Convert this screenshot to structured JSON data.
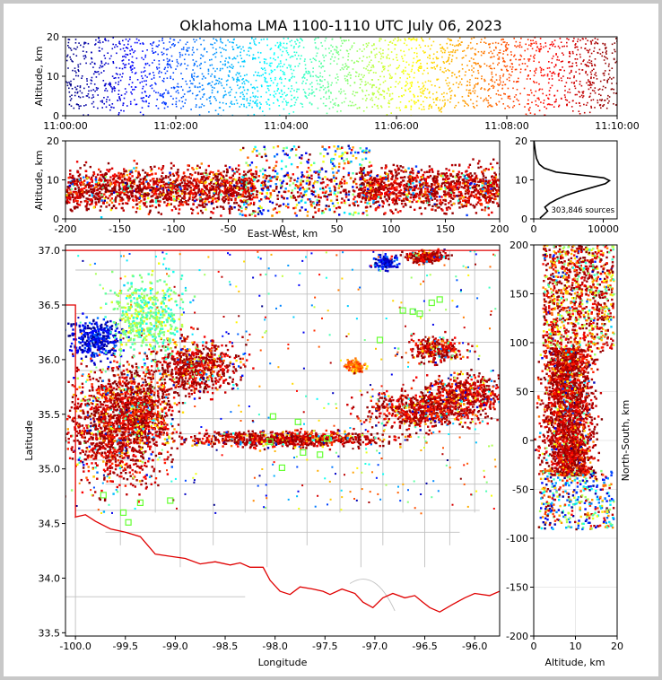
{
  "title": "Oklahoma LMA 1100-1110 UTC July 06, 2023",
  "colors": {
    "state_border": "#e00000",
    "county_lines": "#c0c0c0",
    "profile_line": "#000000"
  },
  "chart_data": [
    {
      "id": "time-height",
      "type": "scatter",
      "xlabel": "",
      "ylabel": "Altitude, km",
      "x_ticks": [
        "11:00:00",
        "11:02:00",
        "11:04:00",
        "11:06:00",
        "11:08:00",
        "11:10:00"
      ],
      "y_ticks": [
        0,
        10,
        20
      ],
      "xlim": [
        "11:00:00",
        "11:10:00"
      ],
      "ylim": [
        0,
        20
      ],
      "colormap": "jet (by time)"
    },
    {
      "id": "east-west-altitude",
      "type": "scatter",
      "xlabel": "East-West, km",
      "ylabel": "Altitude, km",
      "x_ticks": [
        -200,
        -150,
        -100,
        -50,
        0,
        50,
        100,
        150,
        200
      ],
      "y_ticks": [
        0,
        10,
        20
      ],
      "xlim": [
        -200,
        200
      ],
      "ylim": [
        0,
        20
      ],
      "clusters": [
        {
          "x_center": -150,
          "alt_center": 8,
          "density": "high"
        },
        {
          "x_center": -75,
          "alt_center": 8,
          "density": "high"
        },
        {
          "x_center": 120,
          "alt_center": 8,
          "density": "high"
        }
      ]
    },
    {
      "id": "altitude-histogram",
      "type": "line",
      "xlabel": "",
      "ylabel": "",
      "x_ticks": [
        0,
        10000
      ],
      "y_ticks": [
        0,
        10,
        20
      ],
      "xlim": [
        0,
        12000
      ],
      "ylim": [
        0,
        20
      ],
      "annotation": "303,846 sources",
      "profile": [
        {
          "alt": 0.2,
          "count": 900
        },
        {
          "alt": 1.0,
          "count": 1400
        },
        {
          "alt": 2.0,
          "count": 2000
        },
        {
          "alt": 3.0,
          "count": 1600
        },
        {
          "alt": 4.0,
          "count": 2300
        },
        {
          "alt": 5.0,
          "count": 3300
        },
        {
          "alt": 6.0,
          "count": 4600
        },
        {
          "alt": 7.0,
          "count": 6300
        },
        {
          "alt": 8.0,
          "count": 8300
        },
        {
          "alt": 9.0,
          "count": 10300
        },
        {
          "alt": 9.8,
          "count": 10900
        },
        {
          "alt": 10.5,
          "count": 10100
        },
        {
          "alt": 11.0,
          "count": 8000
        },
        {
          "alt": 11.5,
          "count": 5500
        },
        {
          "alt": 12.0,
          "count": 3200
        },
        {
          "alt": 13.0,
          "count": 1500
        },
        {
          "alt": 14.0,
          "count": 800
        },
        {
          "alt": 15.5,
          "count": 400
        },
        {
          "alt": 17.0,
          "count": 250
        },
        {
          "alt": 19.0,
          "count": 100
        },
        {
          "alt": 20.0,
          "count": 40
        }
      ]
    },
    {
      "id": "plan-view",
      "type": "scatter",
      "xlabel": "Longitude",
      "ylabel": "Latitude",
      "x_ticks": [
        "-100.0",
        "-99.5",
        "-99.0",
        "-98.5",
        "-98.0",
        "-97.5",
        "-97.0",
        "-96.5",
        "-96.0"
      ],
      "y_ticks": [
        "33.5",
        "34.0",
        "34.5",
        "35.0",
        "35.5",
        "36.0",
        "36.5",
        "37.0"
      ],
      "xlim": [
        -100.1,
        -95.75
      ],
      "ylim": [
        33.47,
        37.05
      ],
      "stations": [
        {
          "lon": -99.72,
          "lat": 34.76
        },
        {
          "lon": -99.52,
          "lat": 34.6
        },
        {
          "lon": -99.47,
          "lat": 34.51
        },
        {
          "lon": -99.35,
          "lat": 34.69
        },
        {
          "lon": -99.05,
          "lat": 34.71
        },
        {
          "lon": -97.93,
          "lat": 35.01
        },
        {
          "lon": -97.77,
          "lat": 35.43
        },
        {
          "lon": -97.72,
          "lat": 35.15
        },
        {
          "lon": -97.55,
          "lat": 35.13
        },
        {
          "lon": -97.48,
          "lat": 35.28
        },
        {
          "lon": -98.05,
          "lat": 35.25
        },
        {
          "lon": -98.02,
          "lat": 35.48
        },
        {
          "lon": -96.72,
          "lat": 36.45
        },
        {
          "lon": -96.62,
          "lat": 36.44
        },
        {
          "lon": -96.55,
          "lat": 36.42
        },
        {
          "lon": -96.43,
          "lat": 36.52
        },
        {
          "lon": -96.95,
          "lat": 36.18
        },
        {
          "lon": -96.35,
          "lat": 36.55
        }
      ]
    },
    {
      "id": "north-south-altitude",
      "type": "scatter",
      "xlabel": "Altitude, km",
      "ylabel": "North-South, km",
      "x_ticks": [
        0,
        10,
        20
      ],
      "y_ticks": [
        -200,
        -150,
        -100,
        -50,
        0,
        50,
        100,
        150,
        200
      ],
      "xlim": [
        0,
        20
      ],
      "ylim": [
        -200,
        200
      ]
    }
  ]
}
